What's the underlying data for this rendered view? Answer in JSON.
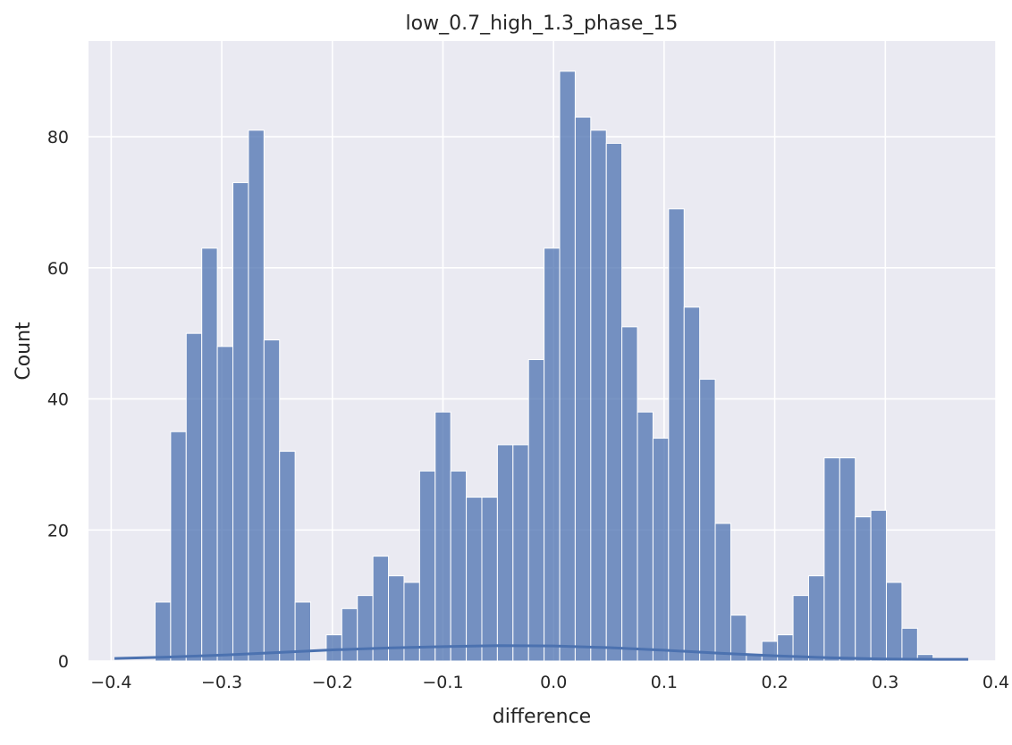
{
  "chart_data": {
    "type": "bar",
    "title": "low_0.7_high_1.3_phase_15",
    "xlabel": "difference",
    "ylabel": "Count",
    "xlim": [
      -0.4205,
      0.4
    ],
    "ylim": [
      0,
      94.6
    ],
    "x_ticks": [
      -0.4,
      -0.3,
      -0.2,
      -0.1,
      0.0,
      0.1,
      0.2,
      0.3,
      0.4
    ],
    "x_tick_labels": [
      "−0.4",
      "−0.3",
      "−0.2",
      "−0.1",
      "0.0",
      "0.1",
      "0.2",
      "0.3",
      "0.4"
    ],
    "y_ticks": [
      0,
      20,
      40,
      60,
      80
    ],
    "y_tick_labels": [
      "0",
      "20",
      "40",
      "60",
      "80"
    ],
    "bin_start": -0.3603,
    "bin_width": 0.01407,
    "counts": [
      9,
      35,
      50,
      63,
      48,
      73,
      81,
      49,
      32,
      9,
      0,
      4,
      8,
      10,
      16,
      13,
      12,
      29,
      38,
      29,
      25,
      25,
      33,
      33,
      46,
      63,
      90,
      83,
      81,
      79,
      51,
      38,
      34,
      69,
      54,
      43,
      21,
      7,
      1,
      3,
      4,
      10,
      13,
      31,
      31,
      22,
      23,
      12,
      5,
      1
    ],
    "kde": {
      "x": [
        -0.397,
        -0.35,
        -0.3,
        -0.25,
        -0.2,
        -0.15,
        -0.1,
        -0.05,
        0.0,
        0.05,
        0.1,
        0.15,
        0.2,
        0.25,
        0.3,
        0.35,
        0.375
      ],
      "y": [
        0.4,
        0.6,
        0.9,
        1.3,
        1.7,
        2.0,
        2.2,
        2.35,
        2.3,
        2.05,
        1.65,
        1.2,
        0.8,
        0.5,
        0.3,
        0.25,
        0.25
      ]
    },
    "grid": true,
    "colors": {
      "bar_fill": "#4c72b0",
      "bar_stroke": "#ffffff",
      "kde_line": "#4c72b0",
      "plot_background": "#eaeaf2",
      "grid": "#ffffff"
    }
  }
}
